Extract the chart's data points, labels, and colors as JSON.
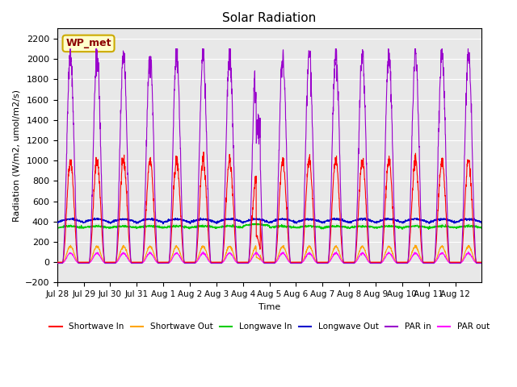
{
  "title": "Solar Radiation",
  "ylabel": "Radiation (W/m2, umol/m2/s)",
  "xlabel": "Time",
  "ylim": [
    -200,
    2300
  ],
  "yticks": [
    -200,
    0,
    200,
    400,
    600,
    800,
    1000,
    1200,
    1400,
    1600,
    1800,
    2000,
    2200
  ],
  "background_color": "#e8e8e8",
  "station_label": "WP_met",
  "colors": {
    "shortwave_in": "#ff0000",
    "shortwave_out": "#ffa500",
    "longwave_in": "#00cc00",
    "longwave_out": "#0000cc",
    "par_in": "#9900cc",
    "par_out": "#ff00ff"
  },
  "legend_labels": [
    "Shortwave In",
    "Shortwave Out",
    "Longwave In",
    "Longwave Out",
    "PAR in",
    "PAR out"
  ],
  "n_days": 16,
  "day_labels": [
    "Jul 28",
    "Jul 29",
    "Jul 30",
    "Jul 31",
    "Aug 1",
    "Aug 2",
    "Aug 3",
    "Aug 4",
    "Aug 5",
    "Aug 6",
    "Aug 7",
    "Aug 8",
    "Aug 9",
    "Aug 10",
    "Aug 11",
    "Aug 12"
  ],
  "points_per_day": 144,
  "shortwave_in_peak": 1000,
  "par_in_peak": 2050,
  "par_out_peak": 100,
  "longwave_in_base": 340,
  "longwave_out_base": 390,
  "shortwave_out_peak": 160
}
